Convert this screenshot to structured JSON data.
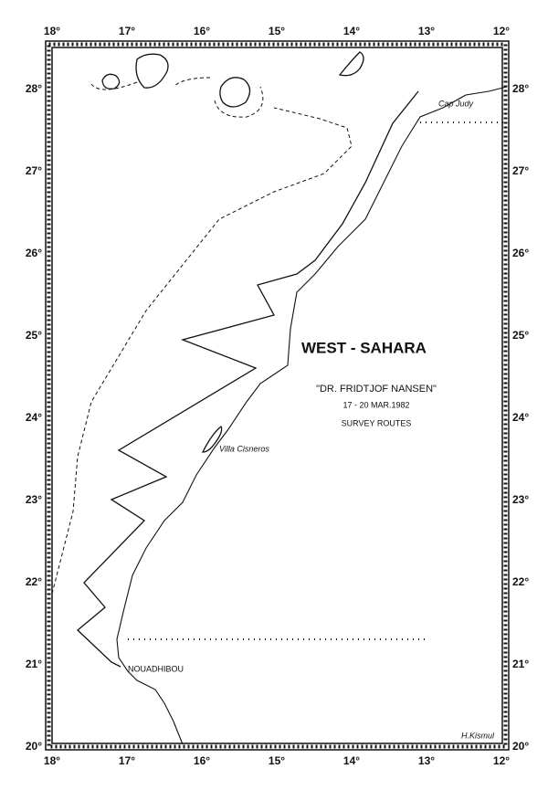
{
  "map": {
    "title": "WEST - SAHARA",
    "vessel": "\"DR. FRIDTJOF NANSEN\"",
    "dates": "17 - 20 MAR.1982",
    "subtitle": "SURVEY ROUTES",
    "places": [
      "Cap Judy",
      "Villa Cisneros",
      "NOUADHIBOU"
    ],
    "author": "H.Kismul",
    "lon_labels": [
      "18°",
      "17°",
      "16°",
      "15°",
      "14°",
      "13°",
      "12°"
    ],
    "lat_labels": [
      "28°",
      "27°",
      "26°",
      "25°",
      "24°",
      "23°",
      "22°",
      "21°",
      "20°"
    ]
  }
}
